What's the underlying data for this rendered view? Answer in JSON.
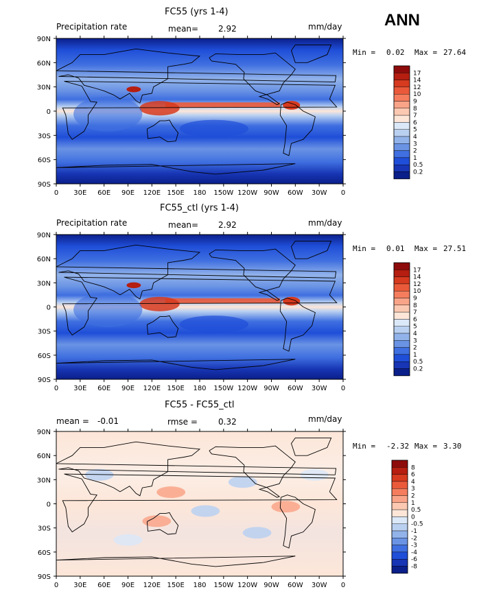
{
  "season": "ANN",
  "lon_labels": [
    "0",
    "30E",
    "60E",
    "90E",
    "120E",
    "150E",
    "180",
    "150W",
    "120W",
    "90W",
    "60W",
    "30W",
    "0"
  ],
  "lat_labels": [
    "90N",
    "60N",
    "30N",
    "0",
    "30S",
    "60S",
    "90S"
  ],
  "panels": [
    {
      "title": "FC55 (yrs 1-4)",
      "left_label": "Precipitation rate",
      "stat_label": "mean=",
      "stat_value": "2.92",
      "units": "mm/day",
      "min_label": "Min =",
      "min_value": "0.02",
      "max_label": "Max =",
      "max_value": "27.64",
      "colorbar_labels": [
        "17",
        "14",
        "12",
        "10",
        "9",
        "8",
        "7",
        "6",
        "5",
        "4",
        "3",
        "2",
        "1",
        "0.5",
        "0.2"
      ]
    },
    {
      "title": "FC55_ctl (yrs 1-4)",
      "left_label": "Precipitation rate",
      "stat_label": "mean=",
      "stat_value": "2.92",
      "units": "mm/day",
      "min_label": "Min =",
      "min_value": "0.01",
      "max_label": "Max =",
      "max_value": "27.51",
      "colorbar_labels": [
        "17",
        "14",
        "12",
        "10",
        "9",
        "8",
        "7",
        "6",
        "5",
        "4",
        "3",
        "2",
        "1",
        "0.5",
        "0.2"
      ]
    },
    {
      "title": "FC55 - FC55_ctl",
      "mean_label": "mean =",
      "mean_value": "-0.01",
      "rmse_label": "rmse =",
      "rmse_value": "0.32",
      "units": "mm/day",
      "min_label": "Min =",
      "min_value": "-2.32",
      "max_label": "Max =",
      "max_value": "3.30",
      "colorbar_labels": [
        "8",
        "6",
        "4",
        "3",
        "2",
        "1",
        "0.5",
        "0",
        "-0.5",
        "-1",
        "-2",
        "-3",
        "-4",
        "-6",
        "-8"
      ]
    }
  ],
  "colors": {
    "precip_scale": [
      "#8e0b0b",
      "#b51e10",
      "#d63a1f",
      "#ea5a3a",
      "#f57d5e",
      "#f9a488",
      "#fbc8b1",
      "#fde6d8",
      "#dbe8f8",
      "#b9d0f1",
      "#92b3ea",
      "#6a93e4",
      "#3f6fe0",
      "#1f4ed8",
      "#1735b4",
      "#0b1f8a"
    ],
    "diff_scale": [
      "#8e0b0b",
      "#b51e10",
      "#d63a1f",
      "#ea5a3a",
      "#f57d5e",
      "#f9a488",
      "#fbc8b1",
      "#fde6d8",
      "#dbe8f8",
      "#b9d0f1",
      "#92b3ea",
      "#6a93e4",
      "#3f6fe0",
      "#1f4ed8",
      "#1735b4",
      "#0b1f8a"
    ]
  }
}
